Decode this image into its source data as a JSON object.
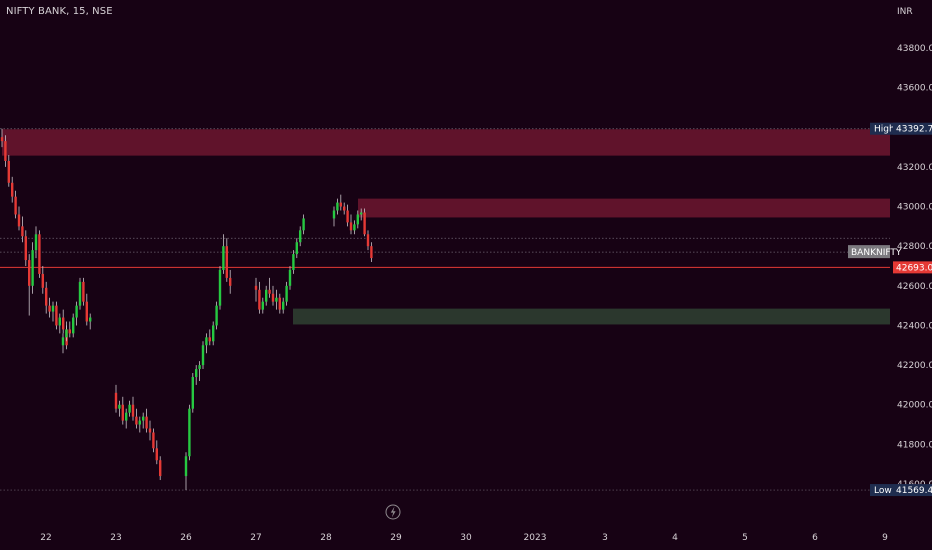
{
  "header": {
    "symbol_line": "NIFTY BANK, 15, NSE"
  },
  "currency": "INR",
  "tags": {
    "high_label": "High",
    "high_value": "43392.70",
    "low_label": "Low",
    "low_value": "41569.45",
    "symbol_label": "BANKNIFTY",
    "last_value": "42693.05"
  },
  "colors": {
    "background": "#170214",
    "up_candle": "#26c941",
    "down_candle": "#e53935",
    "resistance_zone": "#7a1a33",
    "support_zone": "#2c3a2e",
    "last_price_line": "#e53935"
  },
  "icons": {
    "replay": "lightning-icon"
  },
  "chart_data": {
    "type": "candlestick",
    "title": "NIFTY BANK, 15, NSE",
    "ylabel": "INR",
    "ylim": [
      41560,
      44050
    ],
    "y_ticks": [
      "43800.00",
      "43600.00",
      "43400.00",
      "43200.00",
      "43000.00",
      "42800.00",
      "42600.00",
      "42400.00",
      "42200.00",
      "42000.00",
      "41800.00",
      "41600.00"
    ],
    "x_ticks": [
      "22",
      "23",
      "26",
      "27",
      "28",
      "29",
      "30",
      "2023",
      "3",
      "4",
      "5",
      "6",
      "9"
    ],
    "grid": false,
    "high": 43392.7,
    "low": 41569.45,
    "last_price": 42693.05,
    "zones": [
      {
        "kind": "resistance",
        "from": 43257,
        "to": 43390,
        "start_day": "22"
      },
      {
        "kind": "resistance",
        "from": 42945,
        "to": 43040,
        "start_day": "28"
      },
      {
        "kind": "support",
        "from": 42405,
        "to": 42485,
        "start_day": "27"
      }
    ],
    "dotted_levels": [
      43392.7,
      42840,
      42770,
      41569.45
    ],
    "sessions": [
      {
        "day": "21",
        "ohlc": [
          [
            43350,
            43392.7,
            43300,
            43330
          ],
          [
            43330,
            43360,
            43200,
            43230
          ],
          [
            43230,
            43260,
            43100,
            43120
          ],
          [
            43120,
            43150,
            43020,
            43050
          ],
          [
            43050,
            43080,
            42940,
            42960
          ],
          [
            42960,
            43000,
            42880,
            42900
          ],
          [
            42900,
            42950,
            42820,
            42850
          ],
          [
            42850,
            42880,
            42700,
            42730
          ],
          [
            42730,
            42760,
            42450,
            42600
          ],
          [
            42600,
            42820,
            42560,
            42780
          ],
          [
            42780,
            42900,
            42740,
            42860
          ],
          [
            42860,
            42880,
            42640,
            42660
          ],
          [
            42660,
            42700,
            42560,
            42590
          ],
          [
            42590,
            42620,
            42460,
            42500
          ],
          [
            42500,
            42540,
            42440,
            42470
          ],
          [
            42470,
            42520,
            42420,
            42500
          ],
          [
            42500,
            42520,
            42380,
            42400
          ],
          [
            42400,
            42460,
            42360,
            42440
          ],
          [
            42440,
            42480,
            42360,
            42380
          ],
          [
            42380,
            42420,
            42280,
            42300
          ]
        ]
      },
      {
        "day": "22",
        "ohlc": [
          [
            42300,
            42360,
            42260,
            42340
          ],
          [
            42340,
            42400,
            42320,
            42380
          ],
          [
            42380,
            42420,
            42340,
            42360
          ],
          [
            42360,
            42460,
            42340,
            42440
          ],
          [
            42440,
            42520,
            42400,
            42500
          ],
          [
            42500,
            42640,
            42480,
            42620
          ],
          [
            42620,
            42640,
            42500,
            42520
          ],
          [
            42520,
            42560,
            42400,
            42420
          ],
          [
            42420,
            42460,
            42380,
            42440
          ]
        ]
      },
      {
        "day": "23",
        "ohlc": [
          [
            42060,
            42100,
            41960,
            41980
          ],
          [
            41980,
            42020,
            41940,
            42000
          ],
          [
            42000,
            42040,
            41900,
            41920
          ],
          [
            41920,
            41980,
            41880,
            41960
          ],
          [
            41960,
            42020,
            41940,
            42000
          ],
          [
            42000,
            42040,
            41920,
            41940
          ],
          [
            41940,
            41980,
            41880,
            41900
          ],
          [
            41900,
            41940,
            41860,
            41920
          ],
          [
            41920,
            41960,
            41880,
            41940
          ],
          [
            41940,
            41980,
            41860,
            41880
          ],
          [
            41880,
            41920,
            41820,
            41860
          ],
          [
            41860,
            41880,
            41760,
            41780
          ],
          [
            41780,
            41820,
            41700,
            41720
          ],
          [
            41720,
            41740,
            41620,
            41640
          ]
        ]
      },
      {
        "day": "26",
        "ohlc": [
          [
            41640,
            41760,
            41569.45,
            41740
          ],
          [
            41740,
            42000,
            41720,
            41980
          ],
          [
            41980,
            42160,
            41960,
            42140
          ],
          [
            42140,
            42200,
            42100,
            42180
          ],
          [
            42180,
            42220,
            42120,
            42200
          ],
          [
            42200,
            42320,
            42180,
            42300
          ],
          [
            42300,
            42360,
            42260,
            42340
          ],
          [
            42340,
            42380,
            42300,
            42320
          ],
          [
            42320,
            42420,
            42300,
            42400
          ],
          [
            42400,
            42520,
            42380,
            42500
          ],
          [
            42500,
            42700,
            42480,
            42680
          ],
          [
            42680,
            42860,
            42660,
            42800
          ],
          [
            42800,
            42840,
            42620,
            42640
          ],
          [
            42640,
            42680,
            42560,
            42600
          ]
        ]
      },
      {
        "day": "27",
        "ohlc": [
          [
            42600,
            42640,
            42520,
            42580
          ],
          [
            42580,
            42620,
            42460,
            42480
          ],
          [
            42480,
            42540,
            42460,
            42520
          ],
          [
            42520,
            42600,
            42500,
            42580
          ],
          [
            42580,
            42640,
            42540,
            42560
          ],
          [
            42560,
            42600,
            42500,
            42520
          ],
          [
            42520,
            42580,
            42480,
            42540
          ],
          [
            42540,
            42560,
            42460,
            42480
          ],
          [
            42480,
            42540,
            42460,
            42520
          ],
          [
            42520,
            42620,
            42500,
            42600
          ],
          [
            42600,
            42700,
            42580,
            42680
          ],
          [
            42680,
            42780,
            42660,
            42760
          ],
          [
            42760,
            42840,
            42740,
            42820
          ],
          [
            42820,
            42900,
            42800,
            42880
          ],
          [
            42880,
            42960,
            42860,
            42940
          ]
        ]
      },
      {
        "day": "28",
        "ohlc": [
          [
            42940,
            43000,
            42900,
            42980
          ],
          [
            42980,
            43040,
            42960,
            43020
          ],
          [
            43020,
            43060,
            42980,
            43000
          ],
          [
            43000,
            43020,
            42960,
            42980
          ],
          [
            42980,
            43010,
            42900,
            42920
          ],
          [
            42920,
            42960,
            42860,
            42880
          ],
          [
            42880,
            42930,
            42860,
            42910
          ],
          [
            42910,
            42980,
            42890,
            42960
          ],
          [
            42960,
            42990,
            42930,
            42970
          ],
          [
            42970,
            42990,
            42850,
            42860
          ],
          [
            42860,
            42880,
            42780,
            42800
          ],
          [
            42800,
            42820,
            42720,
            42740
          ]
        ]
      }
    ]
  }
}
